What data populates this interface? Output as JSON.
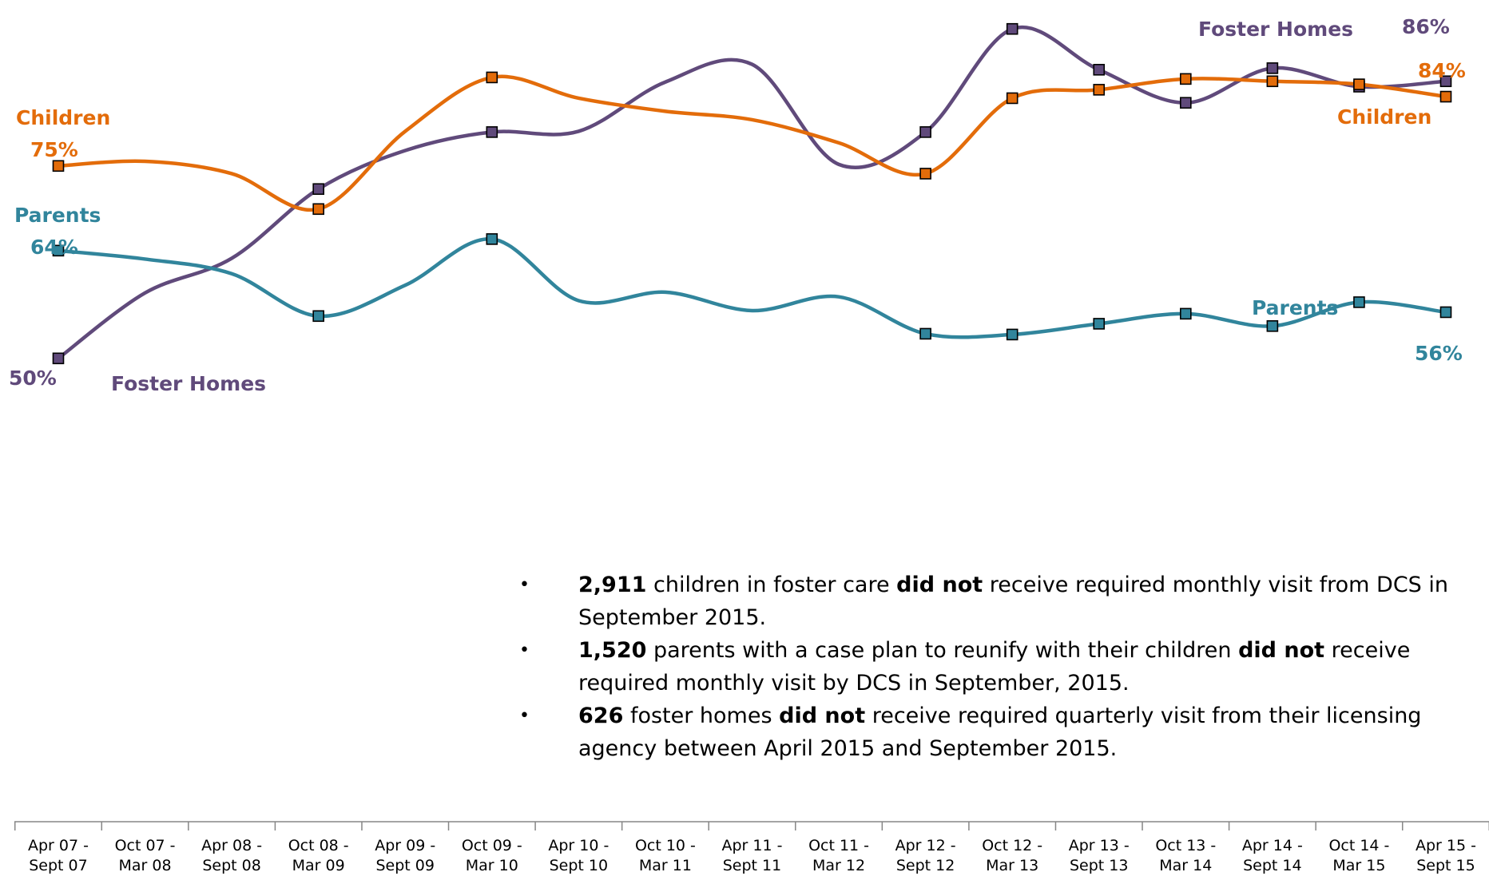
{
  "chart_data": {
    "type": "line",
    "categories": [
      "Apr 07 - Sept 07",
      "Oct 07 - Mar 08",
      "Apr 08 - Sept 08",
      "Oct 08 - Mar 09",
      "Apr 09 - Sept 09",
      "Oct 09 - Mar 10",
      "Apr 10 - Sept 10",
      "Oct 10 - Mar 11",
      "Apr 11 - Sept 11",
      "Oct 11 - Mar 12",
      "Apr 12 - Sept 12",
      "Oct 12 - Mar 13",
      "Apr 13 - Sept 13",
      "Oct 13 - Mar 14",
      "Apr 14 - Sept 14",
      "Oct 14 - Mar 15",
      "Apr 15 - Sept 15"
    ],
    "category_lines": [
      [
        "Apr 07 -",
        "Sept 07"
      ],
      [
        "Oct 07 -",
        "Mar 08"
      ],
      [
        "Apr 08 -",
        "Sept 08"
      ],
      [
        "Oct 08 -",
        "Mar 09"
      ],
      [
        "Apr 09 -",
        "Sept 09"
      ],
      [
        "Oct 09 -",
        "Mar 10"
      ],
      [
        "Apr 10 -",
        "Sept 10"
      ],
      [
        "Oct 10 -",
        "Mar 11"
      ],
      [
        "Apr 11 -",
        "Sept 11"
      ],
      [
        "Oct 11 -",
        "Mar 12"
      ],
      [
        "Apr 12 -",
        "Sept 12"
      ],
      [
        "Oct 12 -",
        "Mar 13"
      ],
      [
        "Apr 13 -",
        "Sept 13"
      ],
      [
        "Oct 13 -",
        "Mar 14"
      ],
      [
        "Apr 14 -",
        "Sept 14"
      ],
      [
        "Oct 14 -",
        "Mar 15"
      ],
      [
        "Apr 15 -",
        "Sept 15"
      ]
    ],
    "ylim": [
      45,
      95
    ],
    "marker_indices": [
      0,
      3,
      5,
      10,
      11,
      12,
      13,
      14,
      15,
      16
    ],
    "series": [
      {
        "name": "Children",
        "color": "#e36c0a",
        "values": [
          75,
          75.6,
          74,
          69.4,
          79.5,
          86.5,
          83.8,
          82.1,
          81,
          78,
          74,
          83.8,
          84.9,
          86.3,
          86,
          85.6,
          84
        ]
      },
      {
        "name": "Parents",
        "color": "#31859c",
        "values": [
          64,
          62.9,
          61,
          55.5,
          59.5,
          65.5,
          57.5,
          58.6,
          56.2,
          58,
          53.2,
          53.1,
          54.5,
          55.8,
          54.2,
          57.3,
          56
        ]
      },
      {
        "name": "Foster Homes",
        "color": "#604a7b",
        "values": [
          50,
          58.5,
          63,
          72,
          77,
          79.4,
          79.5,
          85.9,
          88.2,
          75.2,
          79.4,
          92.8,
          87.5,
          83.2,
          87.7,
          85.3,
          86
        ]
      }
    ],
    "annotations": {
      "children_start_label": "Children",
      "children_start_value": "75%",
      "children_end_label": "Children",
      "children_end_value": "84%",
      "parents_start_label": "Parents",
      "parents_start_value": "64%",
      "parents_end_label": "Parents",
      "parents_end_value": "56%",
      "foster_start_value": "50%",
      "foster_start_label": "Foster Homes",
      "foster_end_label": "Foster Homes",
      "foster_end_value": "86%"
    }
  },
  "bullets": [
    {
      "number": "2,911",
      "pre": " children in foster care ",
      "bold": "did not",
      "post": " receive required monthly visit from DCS in September 2015."
    },
    {
      "number": "1,520",
      "pre": " parents with a case plan to reunify with their children ",
      "bold": "did not",
      "post": " receive required monthly visit by DCS in September, 2015."
    },
    {
      "number": "626",
      "pre": " foster homes ",
      "bold": "did not",
      "post": " receive required quarterly visit from their licensing agency between April 2015 and September 2015."
    }
  ],
  "bullet_glyph": "•"
}
